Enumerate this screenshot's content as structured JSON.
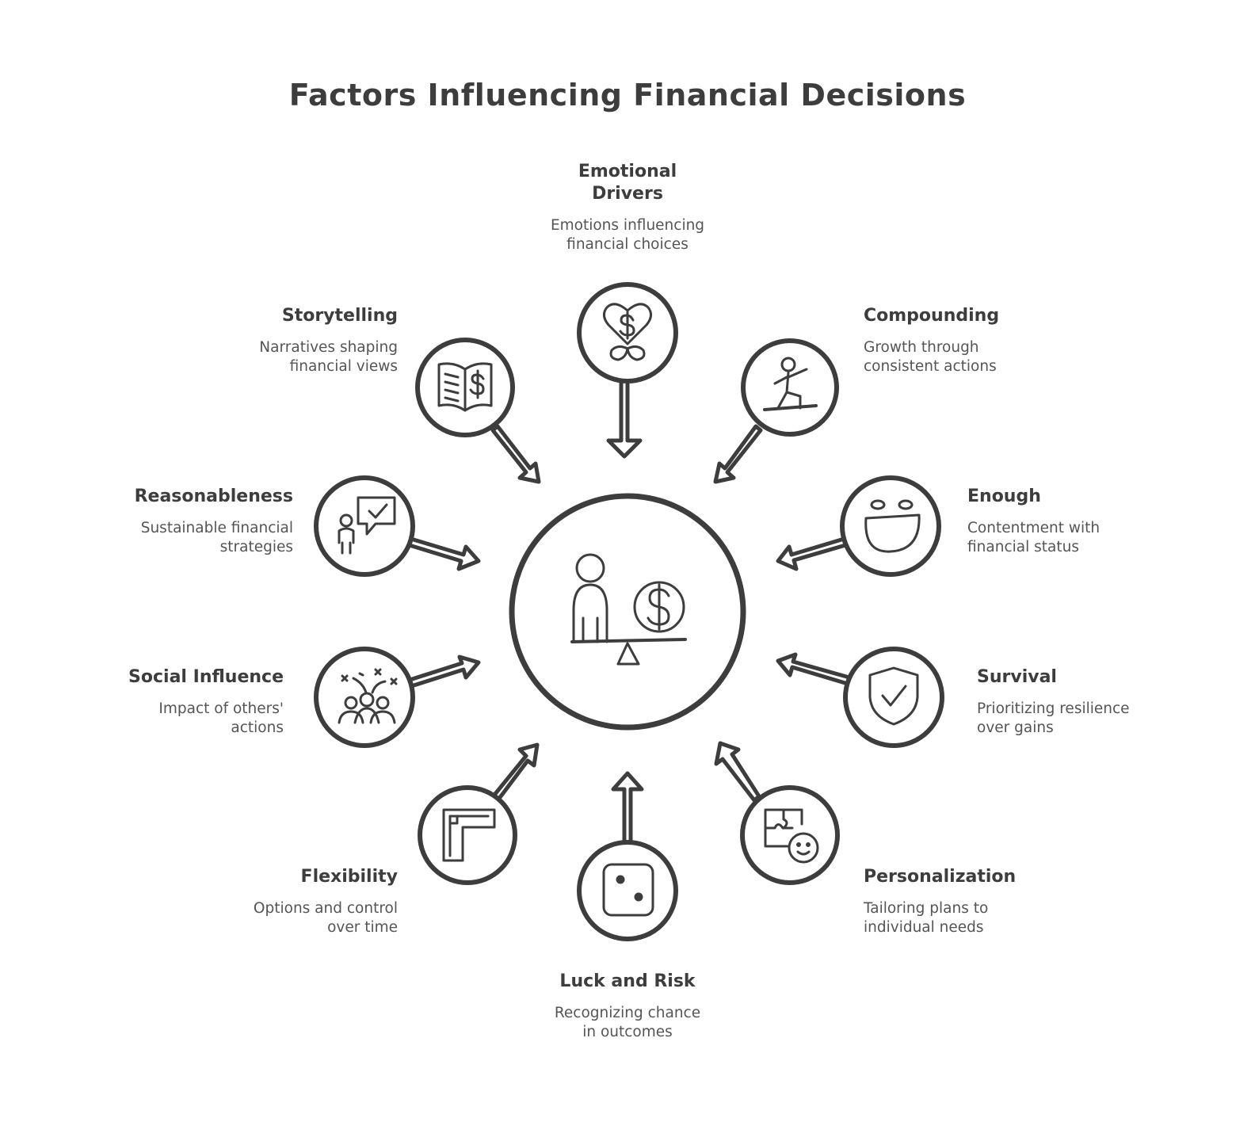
{
  "title": "Factors Influencing Financial Decisions",
  "colors": {
    "stroke": "#3d3d3d",
    "text": "#555555",
    "background": "#ffffff"
  },
  "center": {
    "icon": "person-balancing-money-icon"
  },
  "factors": [
    {
      "id": "emotional-drivers",
      "title": "Emotional Drivers",
      "description": "Emotions influencing financial choices",
      "icon": "heart-dollar-icon"
    },
    {
      "id": "compounding",
      "title": "Compounding",
      "description": "Growth through consistent actions",
      "icon": "person-climbing-icon"
    },
    {
      "id": "enough",
      "title": "Enough",
      "description": "Contentment with financial status",
      "icon": "smiley-face-icon"
    },
    {
      "id": "survival",
      "title": "Survival",
      "description": "Prioritizing resilience over gains",
      "icon": "shield-check-icon"
    },
    {
      "id": "personalization",
      "title": "Personalization",
      "description": "Tailoring plans to individual needs",
      "icon": "puzzle-face-icon"
    },
    {
      "id": "luck-and-risk",
      "title": "Luck and Risk",
      "description": "Recognizing chance in outcomes",
      "icon": "dice-icon"
    },
    {
      "id": "flexibility",
      "title": "Flexibility",
      "description": "Options and control over time",
      "icon": "adjustable-frame-icon"
    },
    {
      "id": "social-influence",
      "title": "Social Influence",
      "description": "Impact of others' actions",
      "icon": "group-people-icon"
    },
    {
      "id": "reasonableness",
      "title": "Reasonableness",
      "description": "Sustainable financial strategies",
      "icon": "person-speech-check-icon"
    },
    {
      "id": "storytelling",
      "title": "Storytelling",
      "description": "Narratives shaping financial views",
      "icon": "open-book-dollar-icon"
    }
  ]
}
